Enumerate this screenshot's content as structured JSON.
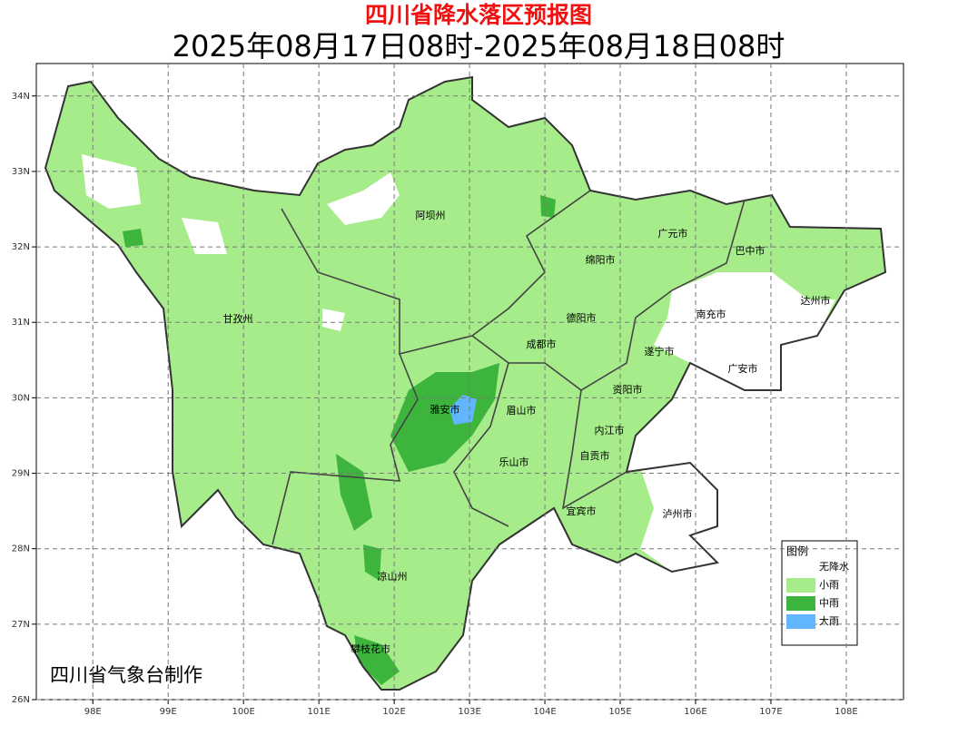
{
  "header": {
    "title": "四川省降水落区预报图",
    "subtitle": "2025年08月17日08时-2025年08月18日08时"
  },
  "map": {
    "xlim": [
      97.25,
      108.76
    ],
    "ylim": [
      26,
      34.43
    ],
    "xticks": [
      {
        "value": 98,
        "label": "98E"
      },
      {
        "value": 99,
        "label": "99E"
      },
      {
        "value": 100,
        "label": "100E"
      },
      {
        "value": 101,
        "label": "101E"
      },
      {
        "value": 102,
        "label": "102E"
      },
      {
        "value": 103,
        "label": "103E"
      },
      {
        "value": 104,
        "label": "104E"
      },
      {
        "value": 105,
        "label": "105E"
      },
      {
        "value": 106,
        "label": "106E"
      },
      {
        "value": 107,
        "label": "107E"
      },
      {
        "value": 108,
        "label": "108E"
      }
    ],
    "yticks": [
      {
        "value": 26,
        "label": "26N"
      },
      {
        "value": 27,
        "label": "27N"
      },
      {
        "value": 28,
        "label": "28N"
      },
      {
        "value": 29,
        "label": "29N"
      },
      {
        "value": 30,
        "label": "30N"
      },
      {
        "value": 31,
        "label": "31N"
      },
      {
        "value": 32,
        "label": "32N"
      },
      {
        "value": 33,
        "label": "33N"
      },
      {
        "value": 34,
        "label": "34N"
      }
    ],
    "grid": true,
    "regions": [
      "阿坝州",
      "甘孜州",
      "广元市",
      "巴中市",
      "绵阳市",
      "达州市",
      "德阳市",
      "南充市",
      "成都市",
      "遂宁市",
      "广安市",
      "资阳市",
      "雅安市",
      "眉山市",
      "内江市",
      "自贡市",
      "乐山市",
      "宜宾市",
      "泸州市",
      "凉山州",
      "攀枝花市"
    ]
  },
  "legend": {
    "title": "图例",
    "items": [
      {
        "label": "无降水",
        "color": "#ffffff"
      },
      {
        "label": "小雨",
        "color": "#a6ec8a"
      },
      {
        "label": "中雨",
        "color": "#3db53d"
      },
      {
        "label": "大雨",
        "color": "#62b5ff"
      }
    ]
  },
  "credit": "四川省气象台制作"
}
